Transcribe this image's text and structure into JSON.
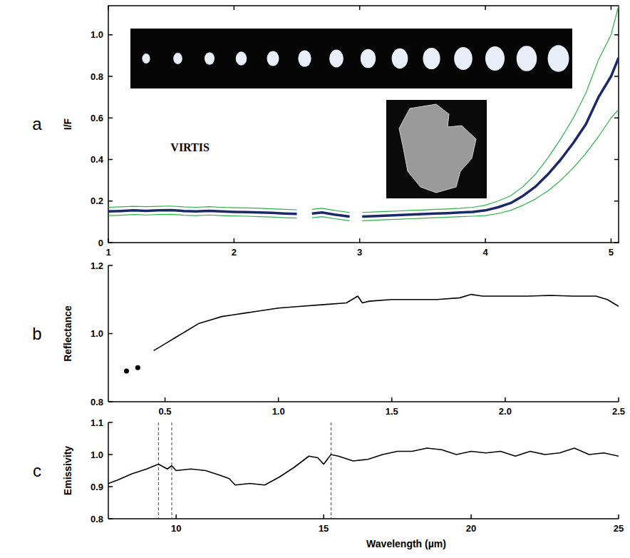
{
  "chart_data": [
    {
      "type": "line",
      "panel_label": "a",
      "annotation": "VIRTIS",
      "ylabel": "I/F",
      "xlim": [
        1,
        5.06
      ],
      "ylim": [
        0,
        1.14
      ],
      "xticks": [
        1,
        2,
        3,
        4,
        5
      ],
      "yticks": [
        0,
        0.2,
        0.4,
        0.6,
        0.8,
        {
          "value": 1.0,
          "label": "1.0"
        }
      ],
      "x": [
        1.0,
        1.1,
        1.2,
        1.3,
        1.4,
        1.5,
        1.6,
        1.7,
        1.8,
        1.9,
        2.0,
        2.1,
        2.2,
        2.3,
        2.4,
        2.5,
        2.55,
        2.62,
        2.7,
        2.8,
        2.92,
        2.97,
        3.02,
        3.1,
        3.2,
        3.3,
        3.4,
        3.5,
        3.6,
        3.7,
        3.8,
        3.9,
        4.0,
        4.1,
        4.2,
        4.3,
        4.4,
        4.5,
        4.6,
        4.7,
        4.8,
        4.9,
        5.0,
        5.06
      ],
      "series": [
        {
          "color": "#2db34a",
          "values": [
            0.17,
            0.172,
            0.175,
            0.173,
            0.175,
            0.176,
            0.172,
            0.17,
            0.173,
            0.17,
            0.168,
            0.167,
            0.165,
            0.163,
            0.16,
            0.158,
            null,
            0.16,
            0.165,
            0.155,
            0.145,
            null,
            0.145,
            0.147,
            0.15,
            0.152,
            0.155,
            0.157,
            0.16,
            0.162,
            0.165,
            0.17,
            0.18,
            0.2,
            0.225,
            0.27,
            0.33,
            0.41,
            0.5,
            0.6,
            0.72,
            0.88,
            1.0,
            1.14
          ]
        },
        {
          "color": "#2db34a",
          "values": [
            0.13,
            0.132,
            0.135,
            0.133,
            0.135,
            0.136,
            0.132,
            0.13,
            0.133,
            0.13,
            0.128,
            0.127,
            0.125,
            0.123,
            0.12,
            0.118,
            null,
            0.12,
            0.125,
            0.115,
            0.105,
            null,
            0.105,
            0.107,
            0.11,
            0.112,
            0.115,
            0.117,
            0.12,
            0.122,
            0.125,
            0.127,
            0.13,
            0.14,
            0.155,
            0.18,
            0.21,
            0.25,
            0.3,
            0.36,
            0.43,
            0.51,
            0.6,
            0.64
          ]
        },
        {
          "color": "#1b2a66",
          "values": [
            0.15,
            0.152,
            0.155,
            0.153,
            0.155,
            0.156,
            0.152,
            0.15,
            0.153,
            0.15,
            0.148,
            0.147,
            0.145,
            0.143,
            0.14,
            0.138,
            null,
            0.14,
            0.145,
            0.135,
            0.125,
            null,
            0.125,
            0.127,
            0.13,
            0.132,
            0.135,
            0.137,
            0.14,
            0.142,
            0.145,
            0.148,
            0.155,
            0.17,
            0.19,
            0.225,
            0.27,
            0.33,
            0.4,
            0.48,
            0.57,
            0.7,
            0.8,
            0.89
          ]
        }
      ]
    },
    {
      "type": "line",
      "panel_label": "b",
      "ylabel": "Reflectance",
      "xlim": [
        0.25,
        2.5
      ],
      "ylim": [
        0.8,
        1.2
      ],
      "xticks": [
        0.5,
        {
          "value": 1.0,
          "label": "1.0"
        },
        1.5,
        {
          "value": 2.0,
          "label": "2.0"
        },
        2.5
      ],
      "yticks": [
        0.8,
        {
          "value": 1.0,
          "label": "1.0"
        },
        1.2
      ],
      "series": [
        {
          "type": "scatter",
          "color": "#000000",
          "x": [
            0.33,
            0.38
          ],
          "values": [
            0.89,
            0.9
          ]
        },
        {
          "color": "#000000",
          "x": [
            0.45,
            0.5,
            0.55,
            0.6,
            0.65,
            0.7,
            0.75,
            0.8,
            0.85,
            0.9,
            1.0,
            1.1,
            1.2,
            1.3,
            1.35,
            1.37,
            1.4,
            1.5,
            1.6,
            1.7,
            1.8,
            1.85,
            1.9,
            2.0,
            2.1,
            2.2,
            2.3,
            2.4,
            2.45,
            2.5
          ],
          "values": [
            0.95,
            0.97,
            0.99,
            1.01,
            1.03,
            1.04,
            1.05,
            1.055,
            1.06,
            1.065,
            1.075,
            1.08,
            1.085,
            1.09,
            1.11,
            1.09,
            1.095,
            1.1,
            1.1,
            1.1,
            1.105,
            1.115,
            1.11,
            1.11,
            1.11,
            1.112,
            1.11,
            1.11,
            1.1,
            1.08
          ]
        }
      ]
    },
    {
      "type": "line",
      "panel_label": "c",
      "ylabel": "Emissivity",
      "xlabel": "Wavelength (µm)",
      "xlim": [
        7.7,
        25
      ],
      "ylim": [
        0.8,
        1.1
      ],
      "xticks": [
        10,
        15,
        20,
        25
      ],
      "yticks": [
        0.8,
        0.9,
        {
          "value": 1.0,
          "label": "1.0"
        },
        1.1
      ],
      "vlines": [
        9.4,
        9.85,
        15.25
      ],
      "x": [
        7.7,
        8.0,
        8.5,
        9.0,
        9.4,
        9.7,
        9.85,
        10.0,
        10.5,
        11.0,
        11.5,
        11.8,
        12.0,
        12.5,
        13.0,
        13.5,
        14.0,
        14.5,
        14.8,
        15.0,
        15.25,
        15.5,
        16.0,
        16.5,
        17.0,
        17.5,
        18.0,
        18.5,
        19.0,
        19.5,
        20.0,
        20.5,
        21.0,
        21.5,
        22.0,
        22.5,
        23.0,
        23.5,
        24.0,
        24.5,
        25.0
      ],
      "series": [
        {
          "color": "#000000",
          "values": [
            0.91,
            0.92,
            0.94,
            0.955,
            0.97,
            0.955,
            0.965,
            0.95,
            0.955,
            0.95,
            0.935,
            0.925,
            0.905,
            0.91,
            0.905,
            0.93,
            0.96,
            0.995,
            0.99,
            0.97,
            1.0,
            0.995,
            0.98,
            0.985,
            1.0,
            1.01,
            1.01,
            1.02,
            1.015,
            1.0,
            1.01,
            1.005,
            1.01,
            0.995,
            1.01,
            1.0,
            1.005,
            1.02,
            1.0,
            1.005,
            0.995
          ]
        }
      ]
    }
  ]
}
